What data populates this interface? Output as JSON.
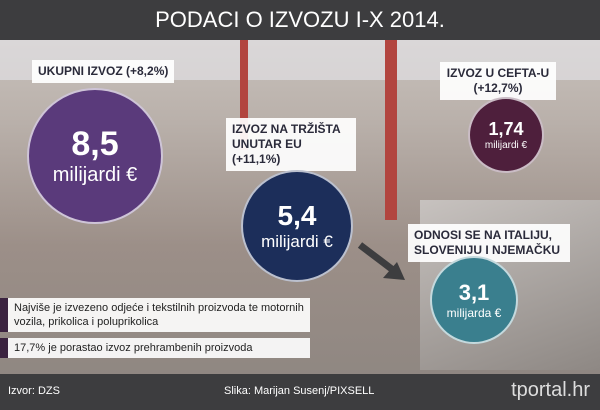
{
  "header": {
    "title": "PODACI O IZVOZU I-X 2014."
  },
  "items": [
    {
      "label": "UKUPNI IZVOZ (+8,2%)",
      "value": "8,5",
      "unit": "milijardi €"
    },
    {
      "label": "IZVOZ NA TRŽIŠTA UNUTAR EU (+11,1%)",
      "value": "5,4",
      "unit": "milijardi €"
    },
    {
      "label": "IZVOZ U CEFTA-U (+12,7%)",
      "value": "1,74",
      "unit": "milijardi €"
    },
    {
      "label": "ODNOSI SE NA ITALIJU, SLOVENIJU I NJEMAČKU",
      "value": "3,1",
      "unit": "milijarda €"
    }
  ],
  "notes": [
    "Najviše je izvezeno odjeće i tekstilnih proizvoda te motornih vozila, prikolica i poluprikolica",
    "17,7% je porastao izvoz prehrambenih proizvoda"
  ],
  "footer": {
    "source": "Izvor: DZS",
    "photo": "Slika: Marijan Susenj/PIXSELL",
    "logo": "tportal.hr"
  }
}
